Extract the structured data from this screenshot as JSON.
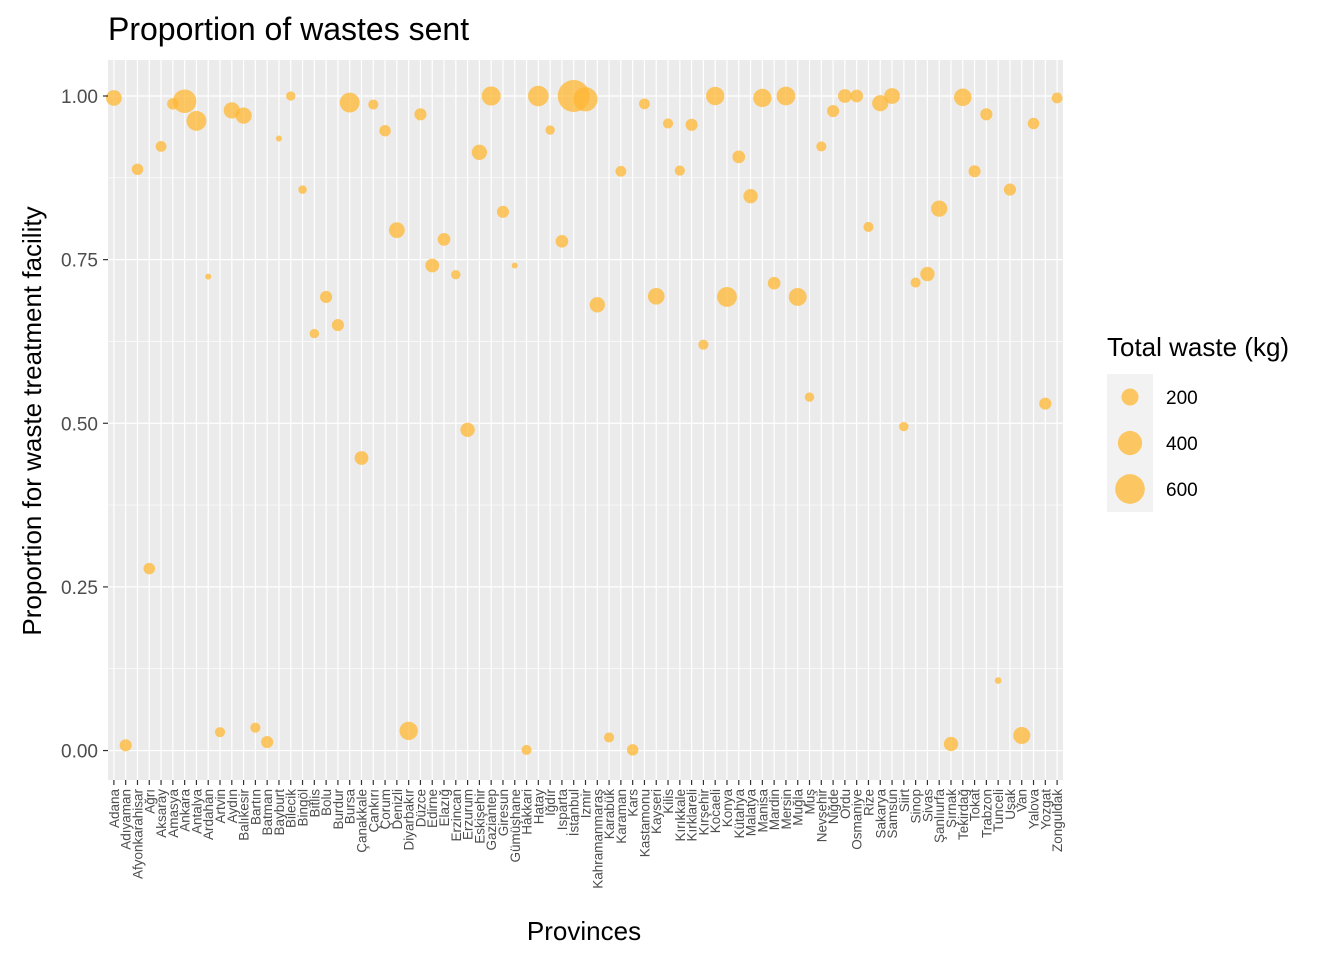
{
  "chart_data": {
    "type": "scatter",
    "title": "Proportion of wastes sent",
    "xlabel": "Provinces",
    "ylabel": "Proportion for waste treatment facility",
    "ylim": [
      -0.045,
      1.055
    ],
    "yticks": [
      0,
      0.25,
      0.5,
      0.75,
      1
    ],
    "ytick_labels": [
      "0.00",
      "0.25",
      "0.50",
      "0.75",
      "1.00"
    ],
    "grid": true,
    "point_color": "#FFB733",
    "panel_color": "#EBEBEB",
    "legend": {
      "title": "Total waste (kg)",
      "placement": "right",
      "sizes": [
        200,
        400,
        600
      ],
      "labels": [
        "200",
        "400",
        "600"
      ]
    },
    "points": [
      {
        "province": "Adana",
        "y": 0.997,
        "size": 170
      },
      {
        "province": "Adıyaman",
        "y": 0.008,
        "size": 100
      },
      {
        "province": "Afyonkarahisar",
        "y": 0.888,
        "size": 90
      },
      {
        "province": "Ağrı",
        "y": 0.278,
        "size": 90
      },
      {
        "province": "Aksaray",
        "y": 0.923,
        "size": 80
      },
      {
        "province": "Amasya",
        "y": 0.988,
        "size": 90
      },
      {
        "province": "Ankara",
        "y": 0.992,
        "size": 380
      },
      {
        "province": "Antalya",
        "y": 0.962,
        "size": 270
      },
      {
        "province": "Ardahan",
        "y": 0.724,
        "size": 25
      },
      {
        "province": "Artvin",
        "y": 0.028,
        "size": 70
      },
      {
        "province": "Aydın",
        "y": 0.978,
        "size": 180
      },
      {
        "province": "Balıkesir",
        "y": 0.97,
        "size": 180
      },
      {
        "province": "Bartın",
        "y": 0.035,
        "size": 70
      },
      {
        "province": "Batman",
        "y": 0.013,
        "size": 100
      },
      {
        "province": "Bayburt",
        "y": 0.935,
        "size": 25
      },
      {
        "province": "Bilecik",
        "y": 1.0,
        "size": 60
      },
      {
        "province": "Bingöl",
        "y": 0.857,
        "size": 50
      },
      {
        "province": "Bitlis",
        "y": 0.637,
        "size": 60
      },
      {
        "province": "Bolu",
        "y": 0.693,
        "size": 100
      },
      {
        "province": "Burdur",
        "y": 0.65,
        "size": 100
      },
      {
        "province": "Bursa",
        "y": 0.99,
        "size": 270
      },
      {
        "province": "Çanakkale",
        "y": 0.447,
        "size": 130
      },
      {
        "province": "Çankırı",
        "y": 0.987,
        "size": 70
      },
      {
        "province": "Çorum",
        "y": 0.947,
        "size": 90
      },
      {
        "province": "Denizli",
        "y": 0.795,
        "size": 170
      },
      {
        "province": "Diyarbakır",
        "y": 0.03,
        "size": 230
      },
      {
        "province": "Düzce",
        "y": 0.972,
        "size": 100
      },
      {
        "province": "Edirne",
        "y": 0.741,
        "size": 130
      },
      {
        "province": "Elazığ",
        "y": 0.781,
        "size": 110
      },
      {
        "province": "Erzincan",
        "y": 0.727,
        "size": 60
      },
      {
        "province": "Erzurum",
        "y": 0.49,
        "size": 140
      },
      {
        "province": "Eskişehir",
        "y": 0.914,
        "size": 160
      },
      {
        "province": "Gaziantep",
        "y": 1.0,
        "size": 250
      },
      {
        "province": "Giresun",
        "y": 0.823,
        "size": 100
      },
      {
        "province": "Gümüşhane",
        "y": 0.741,
        "size": 25
      },
      {
        "province": "Hakkari",
        "y": 0.001,
        "size": 70
      },
      {
        "province": "Hatay",
        "y": 1.0,
        "size": 290
      },
      {
        "province": "Iğdır",
        "y": 0.948,
        "size": 60
      },
      {
        "province": "Isparta",
        "y": 0.778,
        "size": 110
      },
      {
        "province": "İstanbul",
        "y": 1.0,
        "size": 700
      },
      {
        "province": "İzmir",
        "y": 0.995,
        "size": 400
      },
      {
        "province": "Kahramanmaraş",
        "y": 0.681,
        "size": 160
      },
      {
        "province": "Karabük",
        "y": 0.02,
        "size": 70
      },
      {
        "province": "Karaman",
        "y": 0.885,
        "size": 80
      },
      {
        "province": "Kars",
        "y": 0.001,
        "size": 90
      },
      {
        "province": "Kastamonu",
        "y": 0.988,
        "size": 80
      },
      {
        "province": "Kayseri",
        "y": 0.694,
        "size": 190
      },
      {
        "province": "Kilis",
        "y": 0.958,
        "size": 70
      },
      {
        "province": "Kırıkkale",
        "y": 0.886,
        "size": 70
      },
      {
        "province": "Kırklareli",
        "y": 0.956,
        "size": 100
      },
      {
        "province": "Kırşehir",
        "y": 0.62,
        "size": 70
      },
      {
        "province": "Kocaeli",
        "y": 1.0,
        "size": 230
      },
      {
        "province": "Konya",
        "y": 0.693,
        "size": 270
      },
      {
        "province": "Kütahya",
        "y": 0.907,
        "size": 110
      },
      {
        "province": "Malatya",
        "y": 0.847,
        "size": 140
      },
      {
        "province": "Manisa",
        "y": 0.997,
        "size": 230
      },
      {
        "province": "Mardin",
        "y": 0.714,
        "size": 110
      },
      {
        "province": "Mersin",
        "y": 1.0,
        "size": 240
      },
      {
        "province": "Muğla",
        "y": 0.693,
        "size": 220
      },
      {
        "province": "Muş",
        "y": 0.54,
        "size": 60
      },
      {
        "province": "Nevşehir",
        "y": 0.923,
        "size": 70
      },
      {
        "province": "Niğde",
        "y": 0.977,
        "size": 100
      },
      {
        "province": "Ordu",
        "y": 1.0,
        "size": 130
      },
      {
        "province": "Osmaniye",
        "y": 1.0,
        "size": 110
      },
      {
        "province": "Rize",
        "y": 0.8,
        "size": 70
      },
      {
        "province": "Sakarya",
        "y": 0.989,
        "size": 180
      },
      {
        "province": "Samsun",
        "y": 1.0,
        "size": 170
      },
      {
        "province": "Siirt",
        "y": 0.495,
        "size": 60
      },
      {
        "province": "Sinop",
        "y": 0.715,
        "size": 70
      },
      {
        "province": "Sivas",
        "y": 0.728,
        "size": 140
      },
      {
        "province": "Şanlıurfa",
        "y": 0.828,
        "size": 180
      },
      {
        "province": "Şırnak",
        "y": 0.01,
        "size": 140
      },
      {
        "province": "Tekirdağ",
        "y": 0.998,
        "size": 210
      },
      {
        "province": "Tokat",
        "y": 0.885,
        "size": 100
      },
      {
        "province": "Trabzon",
        "y": 0.972,
        "size": 100
      },
      {
        "province": "Tunceli",
        "y": 0.107,
        "size": 30
      },
      {
        "province": "Uşak",
        "y": 0.857,
        "size": 100
      },
      {
        "province": "Van",
        "y": 0.023,
        "size": 200
      },
      {
        "province": "Yalova",
        "y": 0.958,
        "size": 90
      },
      {
        "province": "Yozgat",
        "y": 0.53,
        "size": 100
      },
      {
        "province": "Zonguldak",
        "y": 0.997,
        "size": 80
      }
    ]
  }
}
